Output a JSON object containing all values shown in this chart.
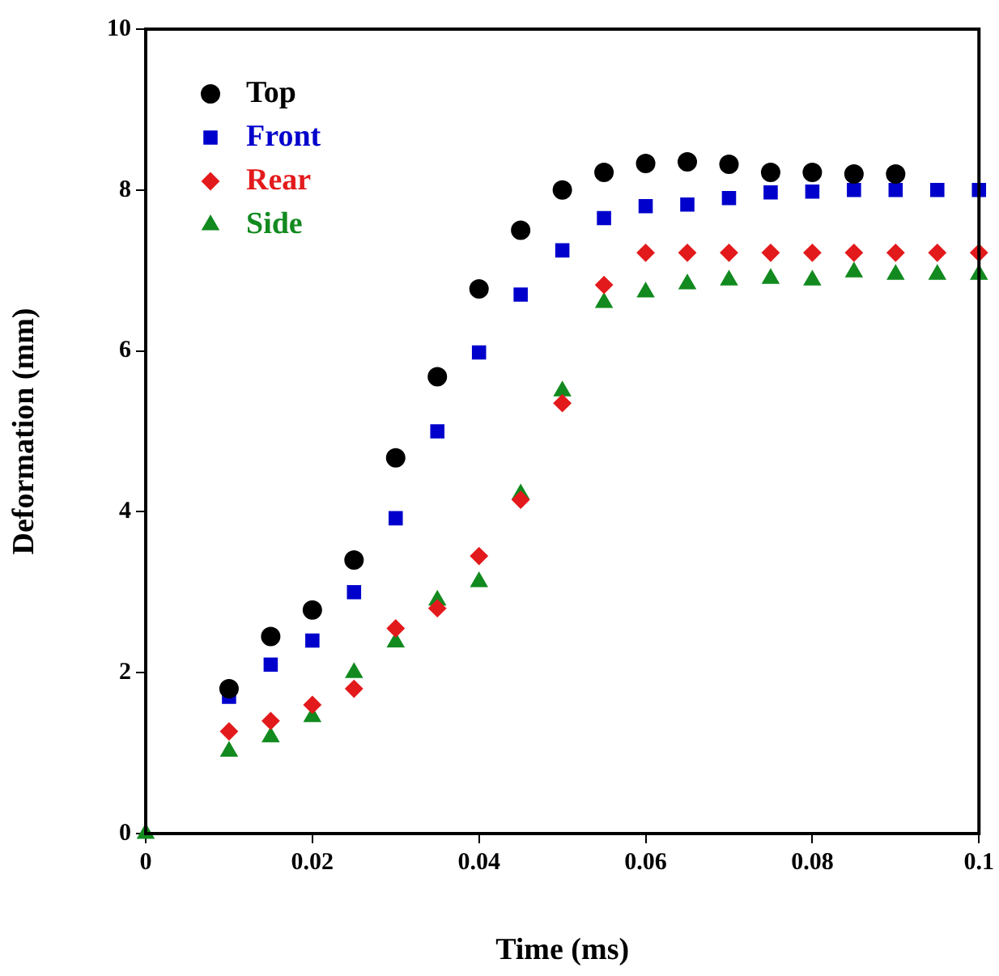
{
  "chart_data": {
    "type": "scatter",
    "xlabel": "Time (ms)",
    "ylabel": "Deformation (mm)",
    "x": [
      0,
      0.01,
      0.015,
      0.02,
      0.025,
      0.03,
      0.035,
      0.04,
      0.045,
      0.05,
      0.055,
      0.06,
      0.065,
      0.07,
      0.075,
      0.08,
      0.085,
      0.09,
      0.095,
      0.1
    ],
    "series": [
      {
        "name": "Top",
        "color": "#000000",
        "marker": "circle",
        "values": [
          null,
          1.8,
          2.45,
          2.78,
          3.4,
          4.67,
          5.68,
          6.77,
          7.5,
          8.0,
          8.22,
          8.33,
          8.35,
          8.32,
          8.22,
          8.22,
          8.2,
          8.2,
          null,
          null
        ]
      },
      {
        "name": "Front",
        "color": "#0000cc",
        "marker": "square",
        "values": [
          null,
          1.7,
          2.1,
          2.4,
          3.0,
          3.92,
          5.0,
          5.98,
          6.7,
          7.25,
          7.65,
          7.8,
          7.82,
          7.9,
          7.97,
          7.98,
          8.0,
          8.0,
          8.0,
          8.0
        ]
      },
      {
        "name": "Rear",
        "color": "#e31a1c",
        "marker": "diamond",
        "values": [
          null,
          1.27,
          1.4,
          1.6,
          1.8,
          2.55,
          2.8,
          3.45,
          4.15,
          5.35,
          6.82,
          7.22,
          7.22,
          7.22,
          7.22,
          7.22,
          7.22,
          7.22,
          7.22,
          7.22
        ]
      },
      {
        "name": "Side",
        "color": "#128a1f",
        "marker": "triangle",
        "values": [
          0,
          1.02,
          1.2,
          1.45,
          2.0,
          2.38,
          2.9,
          3.13,
          4.22,
          5.5,
          6.6,
          6.73,
          6.83,
          6.88,
          6.9,
          6.88,
          6.98,
          6.95,
          6.95,
          6.95
        ]
      }
    ],
    "xlim": [
      0,
      0.1
    ],
    "xticks": [
      0,
      0.02,
      0.04,
      0.06,
      0.08,
      0.1
    ],
    "ylim": [
      0,
      10
    ],
    "yticks": [
      0,
      2,
      4,
      6,
      8,
      10
    ],
    "grid": false,
    "legend": "top left"
  }
}
